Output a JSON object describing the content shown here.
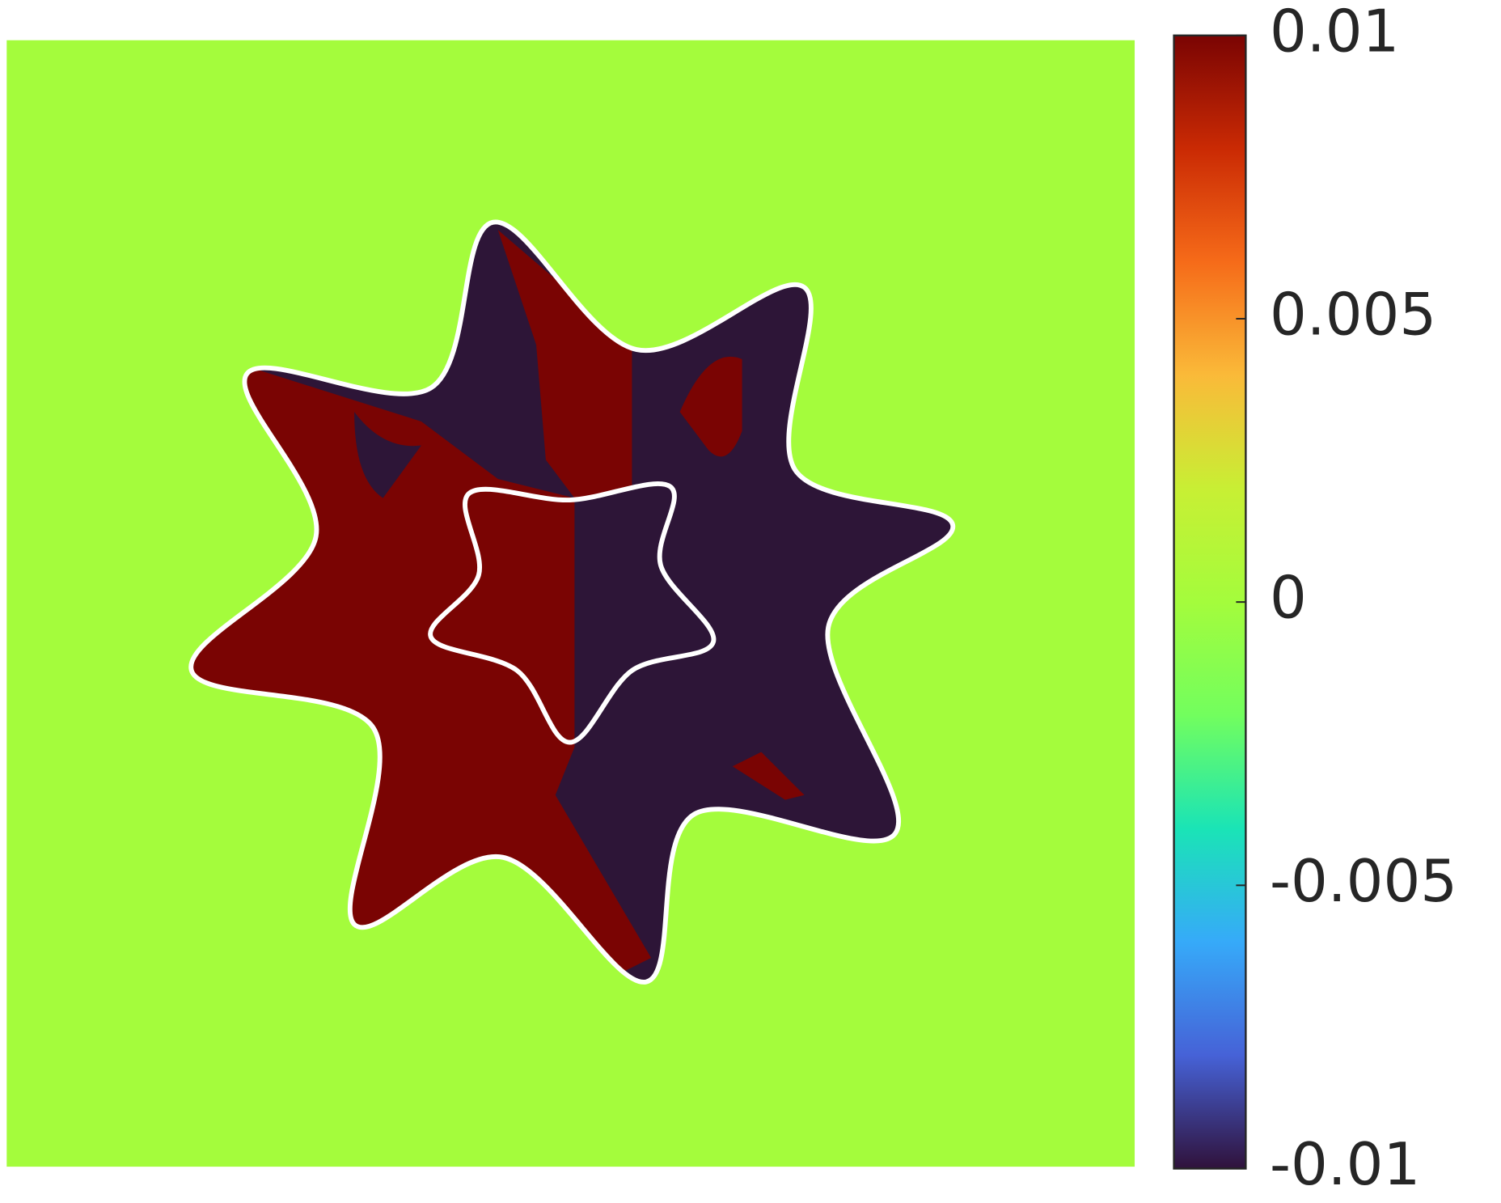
{
  "chart_data": {
    "type": "heatmap",
    "colormap": "turbo",
    "zlim": [
      -0.01,
      0.01
    ],
    "zticks": [
      -0.01,
      -0.005,
      0,
      0.005,
      0.01
    ]
  }
}
